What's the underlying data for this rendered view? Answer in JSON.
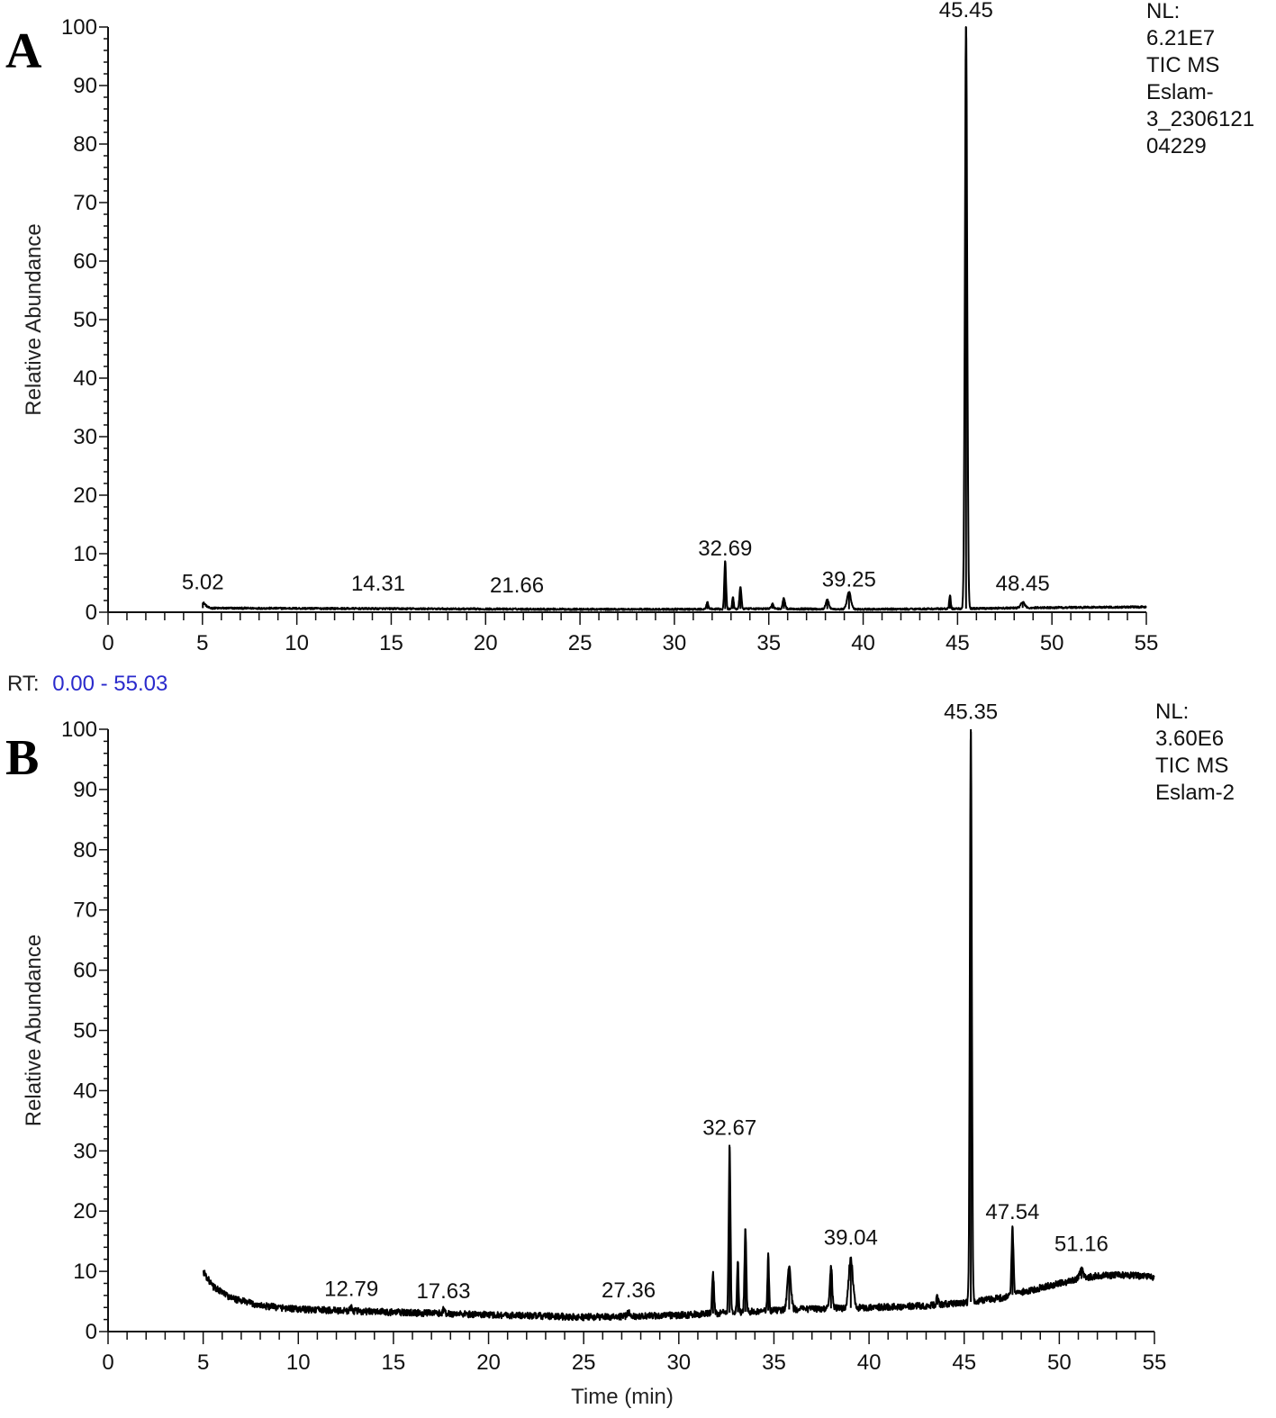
{
  "chart_data": [
    {
      "type": "line",
      "panel_label": "A",
      "ylabel": "Relative Abundance",
      "xlabel": "",
      "xlim": [
        0,
        55
      ],
      "ylim": [
        0,
        100
      ],
      "x_ticks": [
        "0",
        "5",
        "10",
        "15",
        "20",
        "25",
        "30",
        "35",
        "40",
        "45",
        "50",
        "55"
      ],
      "y_ticks": [
        "0",
        "10",
        "20",
        "30",
        "40",
        "50",
        "60",
        "70",
        "80",
        "90",
        "100"
      ],
      "grid": false,
      "info": [
        "NL:",
        "6.21E7",
        "TIC  MS",
        "Eslam-",
        "3_2306121",
        "04229"
      ],
      "signal_start": 5.0,
      "baseline": [
        [
          5.0,
          0.7
        ],
        [
          15.0,
          0.6
        ],
        [
          25.0,
          0.5
        ],
        [
          31.0,
          0.5
        ],
        [
          35.0,
          0.6
        ],
        [
          40.0,
          0.5
        ],
        [
          45.0,
          0.6
        ],
        [
          50.0,
          0.8
        ],
        [
          55.0,
          0.9
        ]
      ],
      "noise": 0.15,
      "peaks": [
        {
          "rt": 5.02,
          "height": 0.9,
          "width": 0.15
        },
        {
          "rt": 31.75,
          "height": 1.2,
          "width": 0.05
        },
        {
          "rt": 32.69,
          "height": 8.2,
          "width": 0.045
        },
        {
          "rt": 33.1,
          "height": 2.1,
          "width": 0.04
        },
        {
          "rt": 33.5,
          "height": 3.8,
          "width": 0.05
        },
        {
          "rt": 35.2,
          "height": 0.8,
          "width": 0.06
        },
        {
          "rt": 35.8,
          "height": 1.8,
          "width": 0.06
        },
        {
          "rt": 38.1,
          "height": 1.6,
          "width": 0.08
        },
        {
          "rt": 39.25,
          "height": 2.9,
          "width": 0.1
        },
        {
          "rt": 44.6,
          "height": 2.2,
          "width": 0.04
        },
        {
          "rt": 45.45,
          "height": 100,
          "width": 0.06
        },
        {
          "rt": 48.45,
          "height": 1.0,
          "width": 0.1
        }
      ],
      "peak_labels": [
        {
          "text": "5.02",
          "rt": 5.02,
          "y": 3.0
        },
        {
          "text": "14.31",
          "rt": 14.31,
          "y": 2.8
        },
        {
          "text": "21.66",
          "rt": 21.66,
          "y": 2.5
        },
        {
          "text": "32.69",
          "rt": 32.69,
          "y": 8.8
        },
        {
          "text": "39.25",
          "rt": 39.25,
          "y": 3.5
        },
        {
          "text": "45.45",
          "rt": 45.45,
          "y": 100.8
        },
        {
          "text": "48.45",
          "rt": 48.45,
          "y": 2.8
        }
      ]
    },
    {
      "type": "line",
      "panel_label": "B",
      "ylabel": "Relative Abundance",
      "xlabel": "Time (min)",
      "xlim": [
        0,
        55
      ],
      "ylim": [
        0,
        100
      ],
      "x_ticks": [
        "0",
        "5",
        "10",
        "15",
        "20",
        "25",
        "30",
        "35",
        "40",
        "45",
        "50",
        "55"
      ],
      "y_ticks": [
        "0",
        "10",
        "20",
        "30",
        "40",
        "50",
        "60",
        "70",
        "80",
        "90",
        "100"
      ],
      "grid": false,
      "info": [
        "NL:",
        "3.60E6",
        "TIC  MS",
        "Eslam-2"
      ],
      "signal_start": 5.0,
      "baseline": [
        [
          5.0,
          10.0
        ],
        [
          5.5,
          7.5
        ],
        [
          6.5,
          5.5
        ],
        [
          8.0,
          4.3
        ],
        [
          10.0,
          3.7
        ],
        [
          15.0,
          3.2
        ],
        [
          20.0,
          2.8
        ],
        [
          25.0,
          2.4
        ],
        [
          30.0,
          2.7
        ],
        [
          33.0,
          3.2
        ],
        [
          36.0,
          3.7
        ],
        [
          40.0,
          4.0
        ],
        [
          43.0,
          4.3
        ],
        [
          45.0,
          4.8
        ],
        [
          47.0,
          5.6
        ],
        [
          48.0,
          6.5
        ],
        [
          50.0,
          8.0
        ],
        [
          52.0,
          9.3
        ],
        [
          53.5,
          9.4
        ],
        [
          55.0,
          9.0
        ]
      ],
      "noise": 0.55,
      "peaks": [
        {
          "rt": 12.79,
          "height": 0.8,
          "width": 0.05
        },
        {
          "rt": 17.63,
          "height": 0.7,
          "width": 0.05
        },
        {
          "rt": 27.36,
          "height": 0.8,
          "width": 0.05
        },
        {
          "rt": 31.8,
          "height": 6.5,
          "width": 0.05
        },
        {
          "rt": 32.67,
          "height": 27.5,
          "width": 0.045
        },
        {
          "rt": 33.1,
          "height": 8.3,
          "width": 0.04
        },
        {
          "rt": 33.5,
          "height": 13.8,
          "width": 0.045
        },
        {
          "rt": 34.7,
          "height": 9.0,
          "width": 0.04
        },
        {
          "rt": 35.8,
          "height": 7.2,
          "width": 0.09
        },
        {
          "rt": 38.0,
          "height": 7.0,
          "width": 0.06
        },
        {
          "rt": 39.04,
          "height": 8.2,
          "width": 0.11
        },
        {
          "rt": 43.6,
          "height": 1.6,
          "width": 0.05
        },
        {
          "rt": 45.35,
          "height": 95.5,
          "width": 0.05
        },
        {
          "rt": 47.54,
          "height": 11.0,
          "width": 0.05
        },
        {
          "rt": 51.16,
          "height": 1.6,
          "width": 0.1
        }
      ],
      "peak_labels": [
        {
          "text": "12.79",
          "rt": 12.79,
          "y": 5.0
        },
        {
          "text": "17.63",
          "rt": 17.63,
          "y": 4.6
        },
        {
          "text": "27.36",
          "rt": 27.36,
          "y": 4.8
        },
        {
          "text": "32.67",
          "rt": 32.67,
          "y": 31.8
        },
        {
          "text": "39.04",
          "rt": 39.04,
          "y": 13.5
        },
        {
          "text": "45.35",
          "rt": 45.35,
          "y": 100.8
        },
        {
          "text": "47.54",
          "rt": 47.54,
          "y": 17.8
        },
        {
          "text": "51.16",
          "rt": 51.16,
          "y": 12.5
        }
      ]
    }
  ],
  "rt_range": {
    "prefix": "RT:",
    "value": "0.00 - 55.03",
    "color": "#2a2acc"
  }
}
